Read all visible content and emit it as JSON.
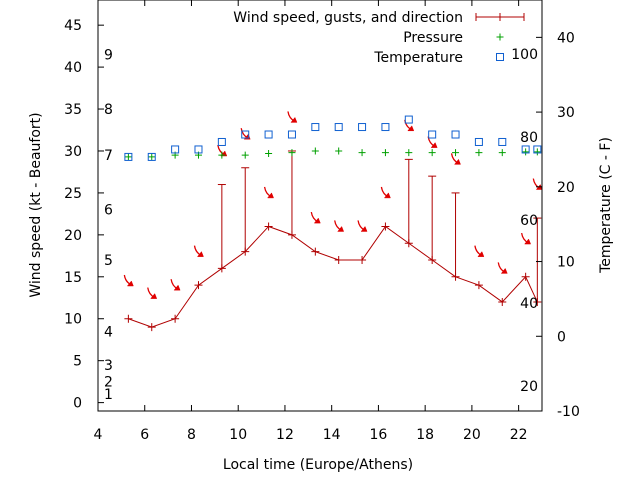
{
  "chart_data": {
    "type": "line",
    "xlabel": "Local time (Europe/Athens)",
    "ylabel": "Wind speed (kt - Beaufort)",
    "y2label": "Temperature (C - F)",
    "xlim": [
      4,
      23
    ],
    "ylim": [
      -1,
      48
    ],
    "y2lim": [
      -10,
      45
    ],
    "xticks": [
      "4",
      "6",
      "8",
      "10",
      "12",
      "14",
      "16",
      "18",
      "20",
      "22"
    ],
    "yticks": [
      "0",
      "5",
      "10",
      "15",
      "20",
      "25",
      "30",
      "35",
      "40",
      "45"
    ],
    "y2ticks": [
      "-10",
      "0",
      "10",
      "20",
      "30",
      "40"
    ],
    "beaufort_labels": [
      "1",
      "2",
      "3",
      "4",
      "5",
      "6",
      "7",
      "8",
      "9"
    ],
    "fahrenheit_labels": [
      "20",
      "40",
      "60",
      "80",
      "100"
    ],
    "legend": [
      {
        "label": "Wind speed, gusts, and direction",
        "color": "#b00000",
        "marker": "line-plus"
      },
      {
        "label": "Pressure",
        "color": "#00a000",
        "marker": "plus"
      },
      {
        "label": "Temperature",
        "color": "#1060d0",
        "marker": "open-square"
      }
    ],
    "legend_position": "top-right",
    "series": [
      {
        "name": "Wind speed, gusts, and direction",
        "x": [
          5.3,
          6.3,
          7.3,
          8.3,
          9.3,
          10.3,
          11.3,
          12.3,
          13.3,
          14.3,
          15.3,
          16.3,
          17.3,
          18.3,
          19.3,
          20.3,
          21.3,
          22.3,
          22.8
        ],
        "speed": [
          10,
          9,
          10,
          14,
          16,
          18,
          21,
          20,
          18,
          17,
          17,
          21,
          19,
          17,
          15,
          14,
          12,
          15,
          12
        ],
        "gust": [
          10,
          9,
          10,
          14,
          26,
          28,
          21,
          30,
          18,
          17,
          17,
          21,
          29,
          27,
          25,
          14,
          12,
          15,
          22
        ]
      },
      {
        "name": "Pressure",
        "x": [
          5.3,
          6.3,
          7.3,
          8.3,
          9.3,
          10.3,
          11.3,
          12.3,
          13.3,
          14.3,
          15.3,
          16.3,
          17.3,
          18.3,
          19.3,
          20.3,
          21.3,
          22.3,
          22.8
        ],
        "y": [
          29.3,
          29.3,
          29.5,
          29.5,
          29.5,
          29.5,
          29.7,
          29.8,
          30,
          30,
          29.8,
          29.8,
          29.8,
          29.8,
          29.8,
          29.8,
          29.8,
          29.9,
          29.9
        ]
      },
      {
        "name": "Temperature",
        "x": [
          5.3,
          6.3,
          7.3,
          8.3,
          9.3,
          10.3,
          11.3,
          12.3,
          13.3,
          14.3,
          15.3,
          16.3,
          17.3,
          18.3,
          19.3,
          20.3,
          21.3,
          22.3,
          22.8
        ],
        "y": [
          24,
          24,
          25,
          25,
          26,
          27,
          27,
          27,
          28,
          28,
          28,
          28,
          29,
          27,
          27,
          26,
          26,
          25,
          25
        ]
      }
    ],
    "direction_arrows": [
      {
        "x": 5.3,
        "y": 14.5
      },
      {
        "x": 6.3,
        "y": 13.0
      },
      {
        "x": 7.3,
        "y": 14.0
      },
      {
        "x": 8.3,
        "y": 18.0
      },
      {
        "x": 9.3,
        "y": 30.0
      },
      {
        "x": 10.3,
        "y": 32.0
      },
      {
        "x": 11.3,
        "y": 25.0
      },
      {
        "x": 12.3,
        "y": 34.0
      },
      {
        "x": 13.3,
        "y": 22.0
      },
      {
        "x": 14.3,
        "y": 21.0
      },
      {
        "x": 15.3,
        "y": 21.0
      },
      {
        "x": 16.3,
        "y": 25.0
      },
      {
        "x": 17.3,
        "y": 33.0
      },
      {
        "x": 18.3,
        "y": 31.0
      },
      {
        "x": 19.3,
        "y": 29.0
      },
      {
        "x": 20.3,
        "y": 18.0
      },
      {
        "x": 21.3,
        "y": 16.0
      },
      {
        "x": 22.3,
        "y": 19.5
      },
      {
        "x": 22.8,
        "y": 26.0
      }
    ],
    "grid": false
  }
}
